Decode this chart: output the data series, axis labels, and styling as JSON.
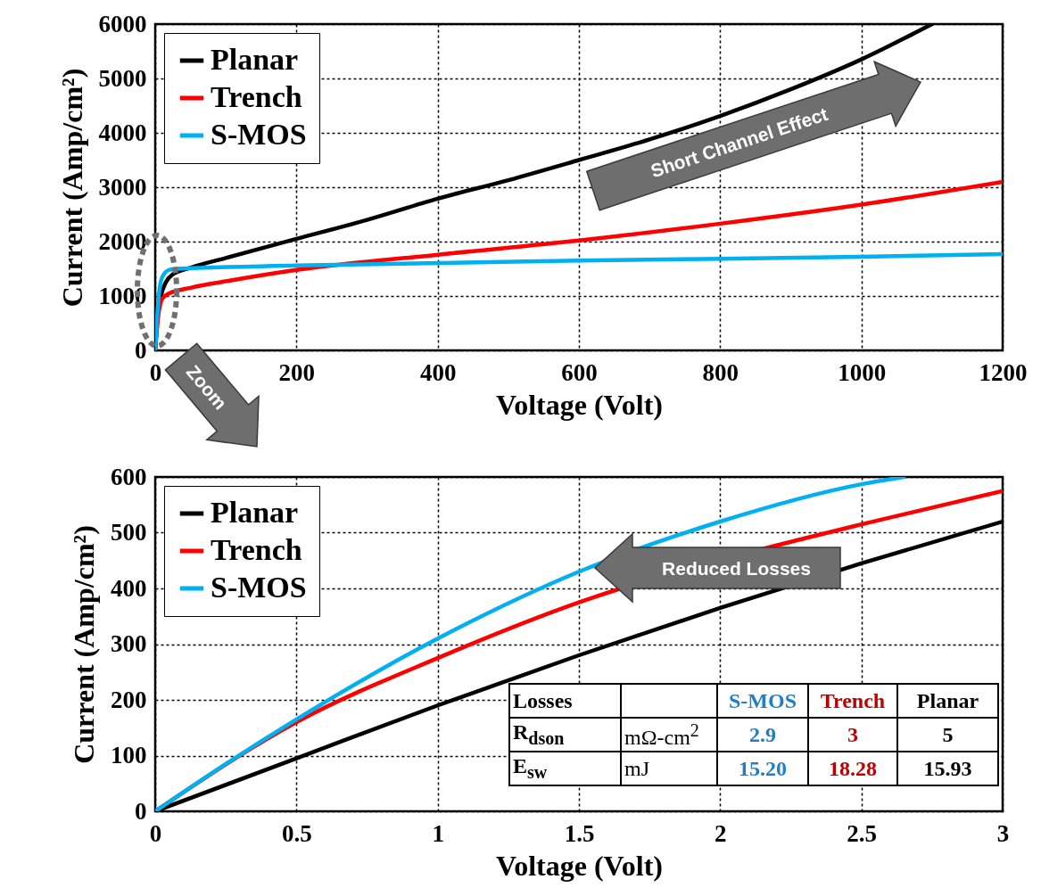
{
  "chart_data": [
    {
      "type": "line",
      "xlabel": "Voltage (Volt)",
      "ylabel": "Current (Amp/cm²)",
      "xlim": [
        0,
        1200
      ],
      "ylim": [
        0,
        6000
      ],
      "xticks": [
        0,
        200,
        400,
        600,
        800,
        1000,
        1200
      ],
      "yticks": [
        0,
        1000,
        2000,
        3000,
        4000,
        5000,
        6000
      ],
      "grid": true,
      "legend": "top left",
      "line_style": "solid",
      "annotations": [
        "Short Channel Effect",
        "Zoom"
      ],
      "series": [
        {
          "name": "Planar",
          "color": "#000000",
          "x": [
            0,
            3,
            8,
            15,
            25,
            50,
            100,
            200,
            300,
            400,
            500,
            600,
            700,
            800,
            900,
            1000,
            1100
          ],
          "values": [
            0,
            600,
            1000,
            1250,
            1400,
            1520,
            1700,
            2050,
            2400,
            2790,
            3130,
            3500,
            3880,
            4310,
            4800,
            5350,
            6000
          ]
        },
        {
          "name": "Trench",
          "color": "#ff0000",
          "x": [
            0,
            5,
            10,
            20,
            50,
            100,
            200,
            400,
            600,
            800,
            1000,
            1200
          ],
          "values": [
            0,
            700,
            950,
            1050,
            1150,
            1270,
            1480,
            1760,
            2020,
            2330,
            2680,
            3100
          ]
        },
        {
          "name": "S-MOS",
          "color": "#00b0f0",
          "x": [
            0,
            5,
            10,
            20,
            30,
            200,
            600,
            1000,
            1200
          ],
          "values": [
            0,
            1000,
            1350,
            1480,
            1500,
            1560,
            1650,
            1720,
            1770
          ]
        }
      ]
    },
    {
      "type": "line",
      "xlabel": "Voltage (Volt)",
      "ylabel": "Current (Amp/cm²)",
      "xlim": [
        0,
        3
      ],
      "ylim": [
        0,
        600
      ],
      "xticks": [
        0,
        0.5,
        1,
        1.5,
        2,
        2.5,
        3
      ],
      "yticks": [
        0,
        100,
        200,
        300,
        400,
        500,
        600
      ],
      "grid": true,
      "legend": "top left",
      "line_style": "solid",
      "annotations": [
        "Reduced Losses",
        "Losses",
        "S-MOS",
        "Trench",
        "Planar",
        "R$_{dson}$",
        "mΩ-cm$^{2}$",
        "2.9",
        "3",
        "5",
        "E$_{sw}$",
        "mJ",
        "15.20",
        "18.28",
        "15.93"
      ],
      "series": [
        {
          "name": "Planar",
          "color": "#000000",
          "x": [
            0,
            0.5,
            1,
            1.5,
            2,
            2.5,
            3
          ],
          "values": [
            0,
            95,
            190,
            280,
            365,
            445,
            520
          ]
        },
        {
          "name": "Trench",
          "color": "#ff0000",
          "x": [
            0,
            0.5,
            1,
            1.5,
            2.3,
            2.5,
            3
          ],
          "values": [
            0,
            160,
            275,
            375,
            490,
            515,
            575
          ]
        },
        {
          "name": "S-MOS",
          "color": "#00b0f0",
          "x": [
            0,
            0.25,
            0.5,
            1,
            1.5,
            2,
            2.5,
            2.65
          ],
          "values": [
            0,
            85,
            165,
            310,
            430,
            520,
            587,
            600
          ]
        }
      ]
    }
  ]
}
